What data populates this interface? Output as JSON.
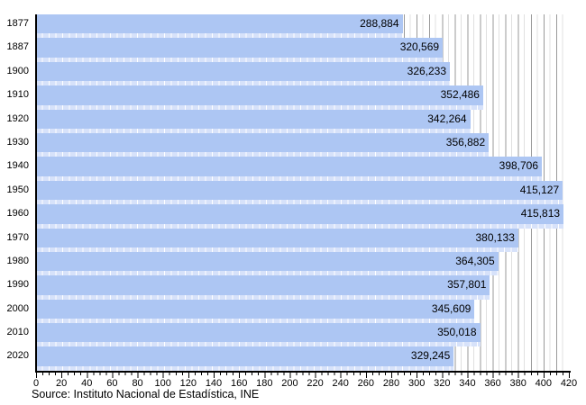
{
  "chart_data": {
    "type": "bar",
    "orientation": "horizontal",
    "title": "",
    "categories": [
      "1877",
      "1887",
      "1900",
      "1910",
      "1920",
      "1930",
      "1940",
      "1950",
      "1960",
      "1970",
      "1980",
      "1990",
      "2000",
      "2010",
      "2020"
    ],
    "values": [
      288884,
      320569,
      326233,
      352486,
      342264,
      356882,
      398706,
      415127,
      415813,
      380133,
      364305,
      357801,
      345609,
      350018,
      329245
    ],
    "value_labels": [
      "288,884",
      "320,569",
      "326,233",
      "352,486",
      "342,264",
      "356,882",
      "398,706",
      "415,127",
      "415,813",
      "380,133",
      "364,305",
      "357,801",
      "345,609",
      "350,018",
      "329,245"
    ],
    "xlabel": "",
    "ylabel": "",
    "x_axis": {
      "min": 0,
      "max": 420,
      "unit": "thousands",
      "major_tick_step": 20,
      "minor_tick_step": 5,
      "tick_labels": [
        "0",
        "20",
        "40",
        "60",
        "80",
        "100",
        "120",
        "140",
        "160",
        "180",
        "200",
        "220",
        "240",
        "260",
        "280",
        "300",
        "320",
        "340",
        "360",
        "380",
        "400",
        "420"
      ]
    },
    "grid": "vertical gridlines, minor every 5, major every 10",
    "legend": "none",
    "source": "Source: Instituto Nacional de Estadística, INE",
    "colors": {
      "bar": "#adc6f3",
      "bar_strip_base": "#d7e2fa",
      "bar_strip_line": "#ffffff",
      "grid_major": "#9a9a9a",
      "grid_minor": "#e0e0e0",
      "axis": "#000000",
      "text": "#000000"
    }
  }
}
